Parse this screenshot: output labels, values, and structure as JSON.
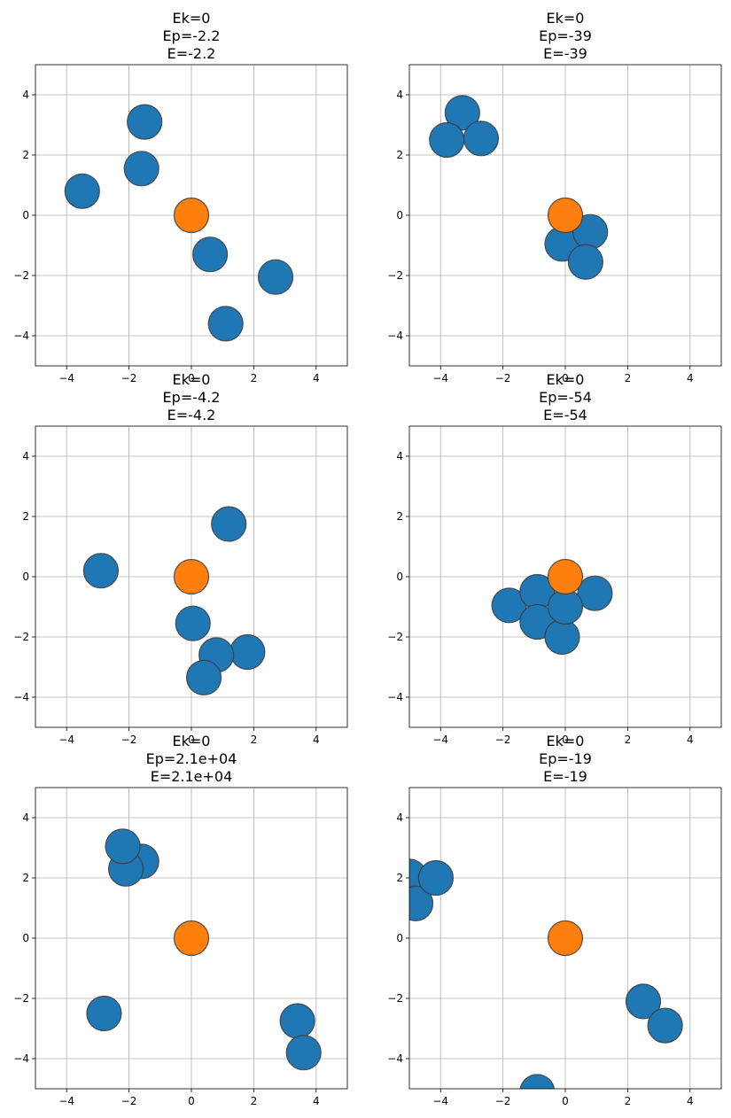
{
  "colors": {
    "particle": "#1f77b4",
    "center": "#ff7f0e"
  },
  "chart_data": [
    {
      "type": "scatter",
      "title_lines": [
        "Ek=0",
        "Ep=-2.2",
        "E=-2.2"
      ],
      "xlim": [
        -5,
        5
      ],
      "ylim": [
        -5,
        5
      ],
      "xticks": [
        -4,
        -2,
        0,
        2,
        4
      ],
      "yticks": [
        -4,
        -2,
        0,
        2,
        4
      ],
      "tick_labels_x": [
        "−4",
        "−2",
        "0",
        "2",
        "4"
      ],
      "tick_labels_y": [
        "−4",
        "−2",
        "0",
        "2",
        "4"
      ],
      "grid": true,
      "center": {
        "x": 0,
        "y": 0
      },
      "points": [
        {
          "x": -1.5,
          "y": 3.1
        },
        {
          "x": -1.6,
          "y": 1.55
        },
        {
          "x": -3.5,
          "y": 0.8
        },
        {
          "x": 0.6,
          "y": -1.3
        },
        {
          "x": 2.7,
          "y": -2.05
        },
        {
          "x": 1.1,
          "y": -3.6
        }
      ]
    },
    {
      "type": "scatter",
      "title_lines": [
        "Ek=0",
        "Ep=-39",
        "E=-39"
      ],
      "xlim": [
        -5,
        5
      ],
      "ylim": [
        -5,
        5
      ],
      "xticks": [
        -4,
        -2,
        0,
        2,
        4
      ],
      "yticks": [
        -4,
        -2,
        0,
        2,
        4
      ],
      "tick_labels_x": [
        "−4",
        "−2",
        "0",
        "2",
        "4"
      ],
      "tick_labels_y": [
        "−4",
        "−2",
        "0",
        "2",
        "4"
      ],
      "grid": true,
      "center": {
        "x": 0,
        "y": 0
      },
      "points": [
        {
          "x": -3.3,
          "y": 3.4
        },
        {
          "x": -3.8,
          "y": 2.5
        },
        {
          "x": -2.7,
          "y": 2.55
        },
        {
          "x": -0.1,
          "y": -0.95
        },
        {
          "x": 0.8,
          "y": -0.55
        },
        {
          "x": 0.65,
          "y": -1.55
        }
      ]
    },
    {
      "type": "scatter",
      "title_lines": [
        "Ek=0",
        "Ep=-4.2",
        "E=-4.2"
      ],
      "xlim": [
        -5,
        5
      ],
      "ylim": [
        -5,
        5
      ],
      "xticks": [
        -4,
        -2,
        0,
        2,
        4
      ],
      "yticks": [
        -4,
        -2,
        0,
        2,
        4
      ],
      "tick_labels_x": [
        "−4",
        "−2",
        "0",
        "2",
        "4"
      ],
      "tick_labels_y": [
        "−4",
        "−2",
        "0",
        "2",
        "4"
      ],
      "grid": true,
      "center": {
        "x": 0,
        "y": 0
      },
      "points": [
        {
          "x": 1.2,
          "y": 1.75
        },
        {
          "x": -2.9,
          "y": 0.2
        },
        {
          "x": 0.05,
          "y": -1.55
        },
        {
          "x": 1.8,
          "y": -2.5
        },
        {
          "x": 0.8,
          "y": -2.6
        },
        {
          "x": 0.4,
          "y": -3.35
        }
      ]
    },
    {
      "type": "scatter",
      "title_lines": [
        "Ek=0",
        "Ep=-54",
        "E=-54"
      ],
      "xlim": [
        -5,
        5
      ],
      "ylim": [
        -5,
        5
      ],
      "xticks": [
        -4,
        -2,
        0,
        2,
        4
      ],
      "yticks": [
        -4,
        -2,
        0,
        2,
        4
      ],
      "tick_labels_x": [
        "−4",
        "−2",
        "0",
        "2",
        "4"
      ],
      "tick_labels_y": [
        "−4",
        "−2",
        "0",
        "2",
        "4"
      ],
      "grid": true,
      "center": {
        "x": 0,
        "y": 0
      },
      "points": [
        {
          "x": -1.8,
          "y": -0.95
        },
        {
          "x": -0.9,
          "y": -0.5
        },
        {
          "x": 0.95,
          "y": -0.55
        },
        {
          "x": -0.9,
          "y": -1.5
        },
        {
          "x": -0.1,
          "y": -2.0
        },
        {
          "x": 0.0,
          "y": -1.0
        }
      ]
    },
    {
      "type": "scatter",
      "title_lines": [
        "Ek=0",
        "Ep=2.1e+04",
        "E=2.1e+04"
      ],
      "xlim": [
        -5,
        5
      ],
      "ylim": [
        -5,
        5
      ],
      "xticks": [
        -4,
        -2,
        0,
        2,
        4
      ],
      "yticks": [
        -4,
        -2,
        0,
        2,
        4
      ],
      "tick_labels_x": [
        "−4",
        "−2",
        "0",
        "2",
        "4"
      ],
      "tick_labels_y": [
        "−4",
        "−2",
        "0",
        "2",
        "4"
      ],
      "grid": true,
      "center": {
        "x": 0,
        "y": 0
      },
      "points": [
        {
          "x": -1.6,
          "y": 2.55
        },
        {
          "x": -2.1,
          "y": 2.3
        },
        {
          "x": -2.2,
          "y": 3.05
        },
        {
          "x": -2.8,
          "y": -2.5
        },
        {
          "x": 3.4,
          "y": -2.75
        },
        {
          "x": 3.6,
          "y": -3.8
        }
      ]
    },
    {
      "type": "scatter",
      "title_lines": [
        "Ek=0",
        "Ep=-19",
        "E=-19"
      ],
      "xlim": [
        -5,
        5
      ],
      "ylim": [
        -5,
        5
      ],
      "xticks": [
        -4,
        -2,
        0,
        2,
        4
      ],
      "yticks": [
        -4,
        -2,
        0,
        2,
        4
      ],
      "tick_labels_x": [
        "−4",
        "−2",
        "0",
        "2",
        "4"
      ],
      "tick_labels_y": [
        "−4",
        "−2",
        "0",
        "2",
        "4"
      ],
      "grid": true,
      "center": {
        "x": 0,
        "y": 0
      },
      "points": [
        {
          "x": -5.0,
          "y": 2.05
        },
        {
          "x": -4.8,
          "y": 1.15
        },
        {
          "x": -4.15,
          "y": 2.0
        },
        {
          "x": 2.5,
          "y": -2.1
        },
        {
          "x": 3.2,
          "y": -2.9
        },
        {
          "x": -0.9,
          "y": -5.1
        }
      ]
    }
  ]
}
